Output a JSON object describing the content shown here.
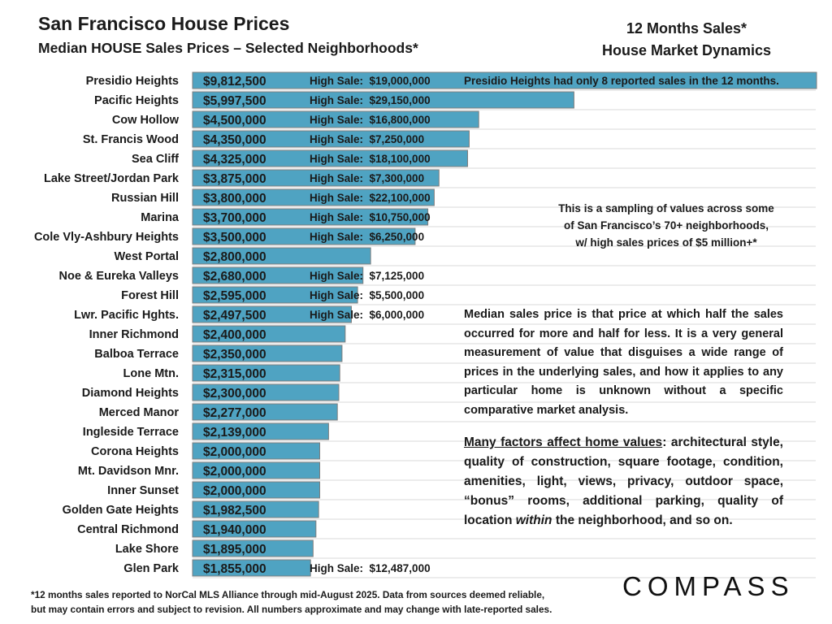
{
  "header": {
    "title": "San Francisco House Prices",
    "subtitle": "Median HOUSE Sales Prices – Selected Neighborhoods*",
    "right_line1": "12 Months Sales*",
    "right_line2": "House Market Dynamics"
  },
  "colors": {
    "bar_fill": "#4fa3c2",
    "bar_stroke": "#7d7d7d",
    "text": "#1a1a1a",
    "grid": "#d9d9d9"
  },
  "chart_data": {
    "type": "bar",
    "orientation": "horizontal",
    "title": "Median HOUSE Sales Prices – Selected Neighborhoods*",
    "xlabel": "",
    "ylabel": "",
    "xlim": [
      0,
      9800000
    ],
    "grid": true,
    "categories": [
      "Presidio Heights",
      "Pacific Heights",
      "Cow Hollow",
      "St. Francis Wood",
      "Sea Cliff",
      "Lake Street/Jordan Park",
      "Russian Hill",
      "Marina",
      "Cole Vly-Ashbury Heights",
      "West Portal",
      "Noe & Eureka Valleys",
      "Forest Hill",
      "Lwr. Pacific Hghts.",
      "Inner Richmond",
      "Balboa Terrace",
      "Lone Mtn.",
      "Diamond Heights",
      "Merced Manor",
      "Ingleside Terrace",
      "Corona Heights",
      "Mt. Davidson Mnr.",
      "Inner Sunset",
      "Golden Gate Heights",
      "Central Richmond",
      "Lake Shore",
      "Glen Park"
    ],
    "values": [
      9812500,
      5997500,
      4500000,
      4350000,
      4325000,
      3875000,
      3800000,
      3700000,
      3500000,
      2800000,
      2680000,
      2595000,
      2497500,
      2400000,
      2350000,
      2315000,
      2300000,
      2277000,
      2139000,
      2000000,
      2000000,
      2000000,
      1982500,
      1940000,
      1895000,
      1855000
    ],
    "value_labels": [
      "$9,812,500",
      "$5,997,500",
      "$4,500,000",
      "$4,350,000",
      "$4,325,000",
      "$3,875,000",
      "$3,800,000",
      "$3,700,000",
      "$3,500,000",
      "$2,800,000",
      "$2,680,000",
      "$2,595,000",
      "$2,497,500",
      "$2,400,000",
      "$2,350,000",
      "$2,315,000",
      "$2,300,000",
      "$2,277,000",
      "$2,139,000",
      "$2,000,000",
      "$2,000,000",
      "$2,000,000",
      "$1,982,500",
      "$1,940,000",
      "$1,895,000",
      "$1,855,000"
    ],
    "high_sale_labels": [
      "High Sale:  $19,000,000",
      "High Sale:  $29,150,000",
      "High Sale:  $16,800,000",
      "High Sale:  $7,250,000",
      "High Sale:  $18,100,000",
      "High Sale:  $7,300,000",
      "High Sale:  $22,100,000",
      "High Sale:  $10,750,000",
      "High Sale:  $6,250,000",
      "",
      "High Sale:  $7,125,000",
      "High Sale:  $5,500,000",
      "High Sale:  $6,000,000",
      "",
      "",
      "",
      "",
      "",
      "",
      "",
      "",
      "",
      "",
      "",
      "",
      "High Sale:  $12,487,000"
    ],
    "annotations": [
      "Presidio Heights had only 8 reported sales in the 12 months."
    ]
  },
  "notes": {
    "sampling_lines": [
      "This is a sampling of values across some",
      "of San Francisco’s 70+ neighborhoods,",
      "w/ high sales prices of $5 million+*"
    ],
    "median": "Median sales price is that price at which half the sales occurred for more and half for less. It is a very general measurement of value that disguises a wide range of prices in the underlying sales, and how it applies to any particular home is unknown without a specific comparative market analysis.",
    "factors_lead": "Many factors affect home values",
    "factors_mid": ": architectural style, quality of construction, square footage, condition, amenities, light, views, privacy, outdoor space, “bonus” rooms, additional parking, quality of location ",
    "factors_em": "within",
    "factors_tail": " the neighborhood, and so on."
  },
  "footer": {
    "line1": "*12 months sales reported to NorCal MLS Alliance through mid-August 2025. Data from sources deemed reliable,",
    "line2": "but may contain errors and subject to revision. All numbers approximate and may change with late-reported sales.",
    "logo": "COMPASS"
  }
}
